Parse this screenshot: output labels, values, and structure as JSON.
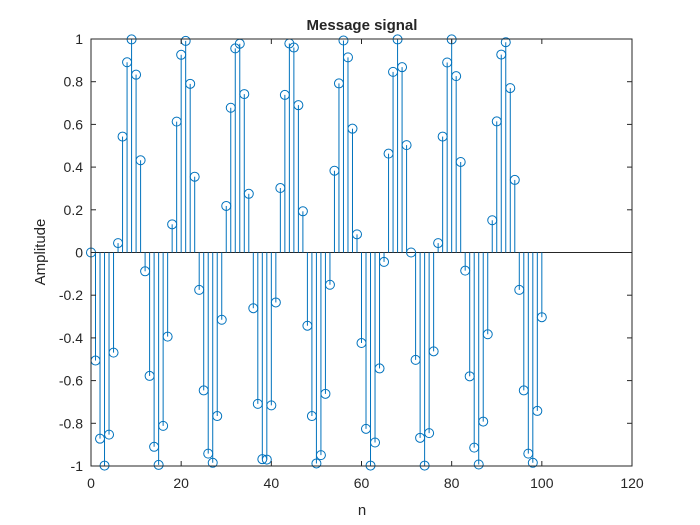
{
  "chart_data": {
    "type": "stem",
    "title": "Message signal",
    "xlabel": "n",
    "ylabel": "Amplitude",
    "xlim": [
      0,
      120
    ],
    "ylim": [
      -1,
      1
    ],
    "xticks": [
      0,
      20,
      40,
      60,
      80,
      100,
      120
    ],
    "yticks": [
      -1,
      -0.8,
      -0.6,
      -0.4,
      -0.2,
      0,
      0.2,
      0.4,
      0.6,
      0.8,
      1
    ],
    "xtick_labels": [
      "0",
      "20",
      "40",
      "60",
      "80",
      "100",
      "120"
    ],
    "ytick_labels": [
      "-1",
      "-0.8",
      "-0.6",
      "-0.4",
      "-0.2",
      "0",
      "0.2",
      "0.4",
      "0.6",
      "0.8",
      "1"
    ],
    "grid": false,
    "color": "#0072BD",
    "marker": "circle",
    "series": [
      {
        "x": [
          0,
          1,
          2,
          3,
          4,
          5,
          6,
          7,
          8,
          9,
          10,
          11,
          12,
          13,
          14,
          15,
          16,
          17,
          18,
          19,
          20,
          21,
          22,
          23,
          24,
          25,
          26,
          27,
          28,
          29,
          30,
          31,
          32,
          33,
          34,
          35,
          36,
          37,
          38,
          39,
          40,
          41,
          42,
          43,
          44,
          45,
          46,
          47,
          48,
          49,
          50,
          51,
          52,
          53,
          54,
          55,
          56,
          57,
          58,
          59,
          60,
          61,
          62,
          63,
          64,
          65,
          66,
          67,
          68,
          69,
          70,
          71,
          72,
          73,
          74,
          75,
          76,
          77,
          78,
          79,
          80,
          81,
          82,
          83,
          84,
          85,
          86,
          87,
          88,
          89,
          90,
          91,
          92,
          93,
          94,
          95,
          96,
          97,
          98,
          99,
          100
        ],
        "y": [
          0.0,
          -0.506,
          -0.872,
          -0.998,
          -0.853,
          -0.469,
          0.044,
          0.543,
          0.891,
          0.998,
          0.833,
          0.432,
          -0.088,
          -0.578,
          -0.91,
          -0.995,
          -0.812,
          -0.394,
          0.132,
          0.613,
          0.926,
          0.991,
          0.79,
          0.355,
          -0.175,
          -0.646,
          -0.942,
          -0.985,
          -0.766,
          -0.315,
          0.218,
          0.678,
          0.956,
          0.978,
          0.742,
          0.275,
          -0.261,
          -0.709,
          -0.968,
          -0.97,
          -0.716,
          -0.234,
          0.302,
          0.738,
          0.979,
          0.96,
          0.69,
          0.193,
          -0.343,
          -0.766,
          -0.988,
          -0.949,
          -0.662,
          -0.151,
          0.383,
          0.792,
          0.993,
          0.914,
          0.58,
          0.085,
          -0.424,
          -0.826,
          -0.998,
          -0.89,
          -0.543,
          -0.044,
          0.463,
          0.846,
          0.998,
          0.868,
          0.503,
          0.0,
          -0.503,
          -0.868,
          -0.998,
          -0.846,
          -0.463,
          0.044,
          0.543,
          0.89,
          0.998,
          0.826,
          0.424,
          -0.085,
          -0.58,
          -0.914,
          -0.993,
          -0.792,
          -0.383,
          0.151,
          0.614,
          0.927,
          0.985,
          0.77,
          0.34,
          -0.175,
          -0.646,
          -0.942,
          -0.985,
          -0.742,
          -0.303
        ]
      }
    ]
  }
}
